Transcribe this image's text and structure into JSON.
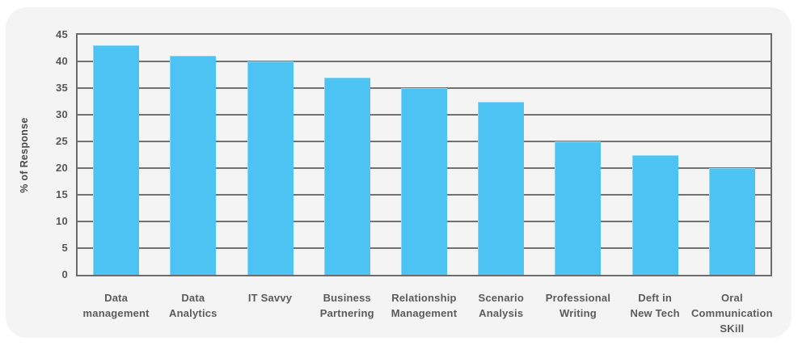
{
  "page": {
    "background_color": "#ffffff",
    "card_background_color": "#f4f4f5"
  },
  "chart_data": {
    "type": "bar",
    "title": "",
    "xlabel": "",
    "ylabel": "% of Response",
    "categories": [
      "Data management",
      "Data Analytics",
      "IT Savvy",
      "Business Partnering",
      "Relationship Management",
      "Scenario Analysis",
      "Professional Writing",
      "Deft in New Tech",
      "Oral Communication SKill"
    ],
    "category_label_lines": [
      [
        "Data",
        "management"
      ],
      [
        "Data",
        "Analytics"
      ],
      [
        "IT Savvy"
      ],
      [
        "Business",
        "Partnering"
      ],
      [
        "Relationship",
        "Management"
      ],
      [
        "Scenario",
        "Analysis"
      ],
      [
        "Professional",
        "Writing"
      ],
      [
        "Deft in",
        "New Tech"
      ],
      [
        "Oral",
        "Communication",
        "SKill"
      ]
    ],
    "values": [
      43,
      41,
      40,
      37,
      35,
      32.5,
      25,
      22.5,
      20
    ],
    "ylim": [
      0,
      45
    ],
    "ytick_step": 5,
    "yticks": [
      0,
      5,
      10,
      15,
      20,
      25,
      30,
      35,
      40,
      45
    ],
    "grid": "horizontal",
    "legend": "none",
    "bar_color": "#4dc3f4",
    "grid_color": "#717274",
    "axis_border_color": "#6b6c6e",
    "tick_text_color": "#58585a",
    "label_text_color": "#5b5b5d"
  }
}
